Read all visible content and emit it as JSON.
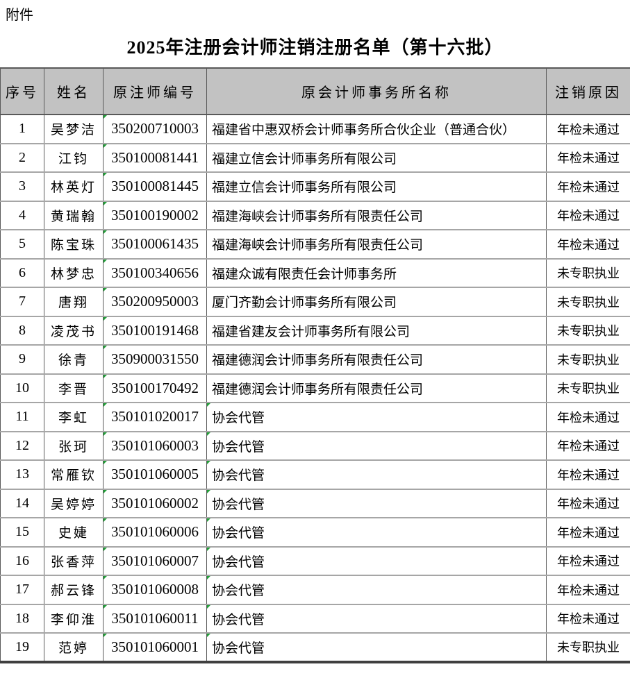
{
  "page": {
    "attachment_label": "附件",
    "title": "2025年注册会计师注销注册名单（第十六批）"
  },
  "colors": {
    "header_bg": "#c2c2c2",
    "grid_light": "#a6a6a6",
    "grid_dark": "#595959",
    "indicator_green": "#21a038"
  },
  "table": {
    "columns": [
      "序号",
      "姓名",
      "原注师编号",
      "原会计师事务所名称",
      "注销原因"
    ],
    "rows": [
      {
        "seq": "1",
        "name": "吴梦洁",
        "id": "350200710003",
        "firm": "福建省中惠双桥会计师事务所合伙企业（普通合伙）",
        "reason": "年检未通过",
        "id_flag": true,
        "firm_flag": false
      },
      {
        "seq": "2",
        "name": "江钧",
        "id": "350100081441",
        "firm": "福建立信会计师事务所有限公司",
        "reason": "年检未通过",
        "id_flag": true,
        "firm_flag": false
      },
      {
        "seq": "3",
        "name": "林英灯",
        "id": "350100081445",
        "firm": "福建立信会计师事务所有限公司",
        "reason": "年检未通过",
        "id_flag": true,
        "firm_flag": false
      },
      {
        "seq": "4",
        "name": "黄瑞翰",
        "id": "350100190002",
        "firm": "福建海峡会计师事务所有限责任公司",
        "reason": "年检未通过",
        "id_flag": true,
        "firm_flag": false
      },
      {
        "seq": "5",
        "name": "陈宝珠",
        "id": "350100061435",
        "firm": "福建海峡会计师事务所有限责任公司",
        "reason": "年检未通过",
        "id_flag": true,
        "firm_flag": false
      },
      {
        "seq": "6",
        "name": "林梦忠",
        "id": "350100340656",
        "firm": "福建众诚有限责任会计师事务所",
        "reason": "未专职执业",
        "id_flag": true,
        "firm_flag": false
      },
      {
        "seq": "7",
        "name": "唐翔",
        "id": "350200950003",
        "firm": "厦门齐勤会计师事务所有限公司",
        "reason": "未专职执业",
        "id_flag": true,
        "firm_flag": false
      },
      {
        "seq": "8",
        "name": "凌茂书",
        "id": "350100191468",
        "firm": "福建省建友会计师事务所有限公司",
        "reason": "未专职执业",
        "id_flag": true,
        "firm_flag": false
      },
      {
        "seq": "9",
        "name": "徐青",
        "id": "350900031550",
        "firm": "福建德润会计师事务所有限责任公司",
        "reason": "未专职执业",
        "id_flag": true,
        "firm_flag": false
      },
      {
        "seq": "10",
        "name": "李晋",
        "id": "350100170492",
        "firm": "福建德润会计师事务所有限责任公司",
        "reason": "未专职执业",
        "id_flag": true,
        "firm_flag": false
      },
      {
        "seq": "11",
        "name": "李虹",
        "id": "350101020017",
        "firm": "协会代管",
        "reason": "年检未通过",
        "id_flag": true,
        "firm_flag": true
      },
      {
        "seq": "12",
        "name": "张珂",
        "id": "350101060003",
        "firm": "协会代管",
        "reason": "年检未通过",
        "id_flag": true,
        "firm_flag": true
      },
      {
        "seq": "13",
        "name": "常雁钦",
        "id": "350101060005",
        "firm": "协会代管",
        "reason": "年检未通过",
        "id_flag": true,
        "firm_flag": true
      },
      {
        "seq": "14",
        "name": "吴婷婷",
        "id": "350101060002",
        "firm": "协会代管",
        "reason": "年检未通过",
        "id_flag": true,
        "firm_flag": true
      },
      {
        "seq": "15",
        "name": "史婕",
        "id": "350101060006",
        "firm": "协会代管",
        "reason": "年检未通过",
        "id_flag": true,
        "firm_flag": true
      },
      {
        "seq": "16",
        "name": "张香萍",
        "id": "350101060007",
        "firm": "协会代管",
        "reason": "年检未通过",
        "id_flag": true,
        "firm_flag": true
      },
      {
        "seq": "17",
        "name": "郝云锋",
        "id": "350101060008",
        "firm": "协会代管",
        "reason": "年检未通过",
        "id_flag": true,
        "firm_flag": true
      },
      {
        "seq": "18",
        "name": "李仰淮",
        "id": "350101060011",
        "firm": "协会代管",
        "reason": "年检未通过",
        "id_flag": true,
        "firm_flag": true
      },
      {
        "seq": "19",
        "name": "范婷",
        "id": "350101060001",
        "firm": "协会代管",
        "reason": "未专职执业",
        "id_flag": true,
        "firm_flag": true
      }
    ]
  }
}
